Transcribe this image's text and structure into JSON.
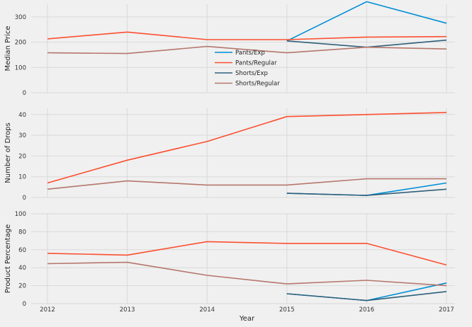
{
  "colors": {
    "Pants/Exp": "#008fd5",
    "Pants/Regular": "#fc4f30",
    "Shorts/Exp": "#30607a",
    "Shorts/Regular": "#b5776d"
  },
  "chart_data": [
    {
      "type": "line",
      "ylabel": "Median Price",
      "ylim": [
        0,
        350
      ],
      "yticks": [
        0,
        100,
        200,
        300
      ],
      "x": [
        2012,
        2013,
        2014,
        2015,
        2016,
        2017
      ],
      "legend": {
        "placement": "center",
        "entries": [
          "Pants/Exp",
          "Pants/Regular",
          "Shorts/Exp",
          "Shorts/Regular"
        ]
      },
      "series": [
        {
          "name": "Pants/Exp",
          "x": [
            2015,
            2016,
            2017
          ],
          "values": [
            205,
            360,
            275
          ]
        },
        {
          "name": "Pants/Regular",
          "x": [
            2012,
            2013,
            2014,
            2015,
            2016,
            2017
          ],
          "values": [
            213,
            240,
            210,
            210,
            220,
            222
          ]
        },
        {
          "name": "Shorts/Exp",
          "x": [
            2015,
            2016,
            2017
          ],
          "values": [
            205,
            180,
            208
          ]
        },
        {
          "name": "Shorts/Regular",
          "x": [
            2012,
            2013,
            2014,
            2015,
            2016,
            2017
          ],
          "values": [
            158,
            155,
            183,
            158,
            180,
            173
          ]
        }
      ]
    },
    {
      "type": "line",
      "ylabel": "Number of Drops",
      "ylim": [
        0,
        43
      ],
      "yticks": [
        0,
        10,
        20,
        30,
        40
      ],
      "x": [
        2012,
        2013,
        2014,
        2015,
        2016,
        2017
      ],
      "series": [
        {
          "name": "Pants/Exp",
          "x": [
            2015,
            2016,
            2017
          ],
          "values": [
            2,
            1,
            7
          ]
        },
        {
          "name": "Pants/Regular",
          "x": [
            2012,
            2013,
            2014,
            2015,
            2016,
            2017
          ],
          "values": [
            7,
            18,
            27,
            39,
            40,
            41
          ]
        },
        {
          "name": "Shorts/Exp",
          "x": [
            2015,
            2016,
            2017
          ],
          "values": [
            2,
            1,
            4
          ]
        },
        {
          "name": "Shorts/Regular",
          "x": [
            2012,
            2013,
            2014,
            2015,
            2016,
            2017
          ],
          "values": [
            4,
            8,
            6,
            6,
            9,
            9
          ]
        }
      ]
    },
    {
      "type": "line",
      "ylabel": "Product Percentage",
      "xlabel": "Year",
      "ylim": [
        0,
        100
      ],
      "yticks": [
        0,
        20,
        40,
        60,
        80,
        100
      ],
      "x": [
        2012,
        2013,
        2014,
        2015,
        2016,
        2017
      ],
      "xticks": [
        "2012",
        "2013",
        "2014",
        "2015",
        "2016",
        "2017"
      ],
      "series": [
        {
          "name": "Pants/Exp",
          "x": [
            2015,
            2016,
            2017
          ],
          "values": [
            11,
            3.5,
            23
          ]
        },
        {
          "name": "Pants/Regular",
          "x": [
            2012,
            2013,
            2014,
            2015,
            2016,
            2017
          ],
          "values": [
            56,
            54,
            69,
            67,
            67,
            43
          ]
        },
        {
          "name": "Shorts/Exp",
          "x": [
            2015,
            2016,
            2017
          ],
          "values": [
            11,
            3.5,
            13.5
          ]
        },
        {
          "name": "Shorts/Regular",
          "x": [
            2012,
            2013,
            2014,
            2015,
            2016,
            2017
          ],
          "values": [
            44.5,
            46,
            31.5,
            22,
            26,
            20
          ]
        }
      ]
    }
  ]
}
